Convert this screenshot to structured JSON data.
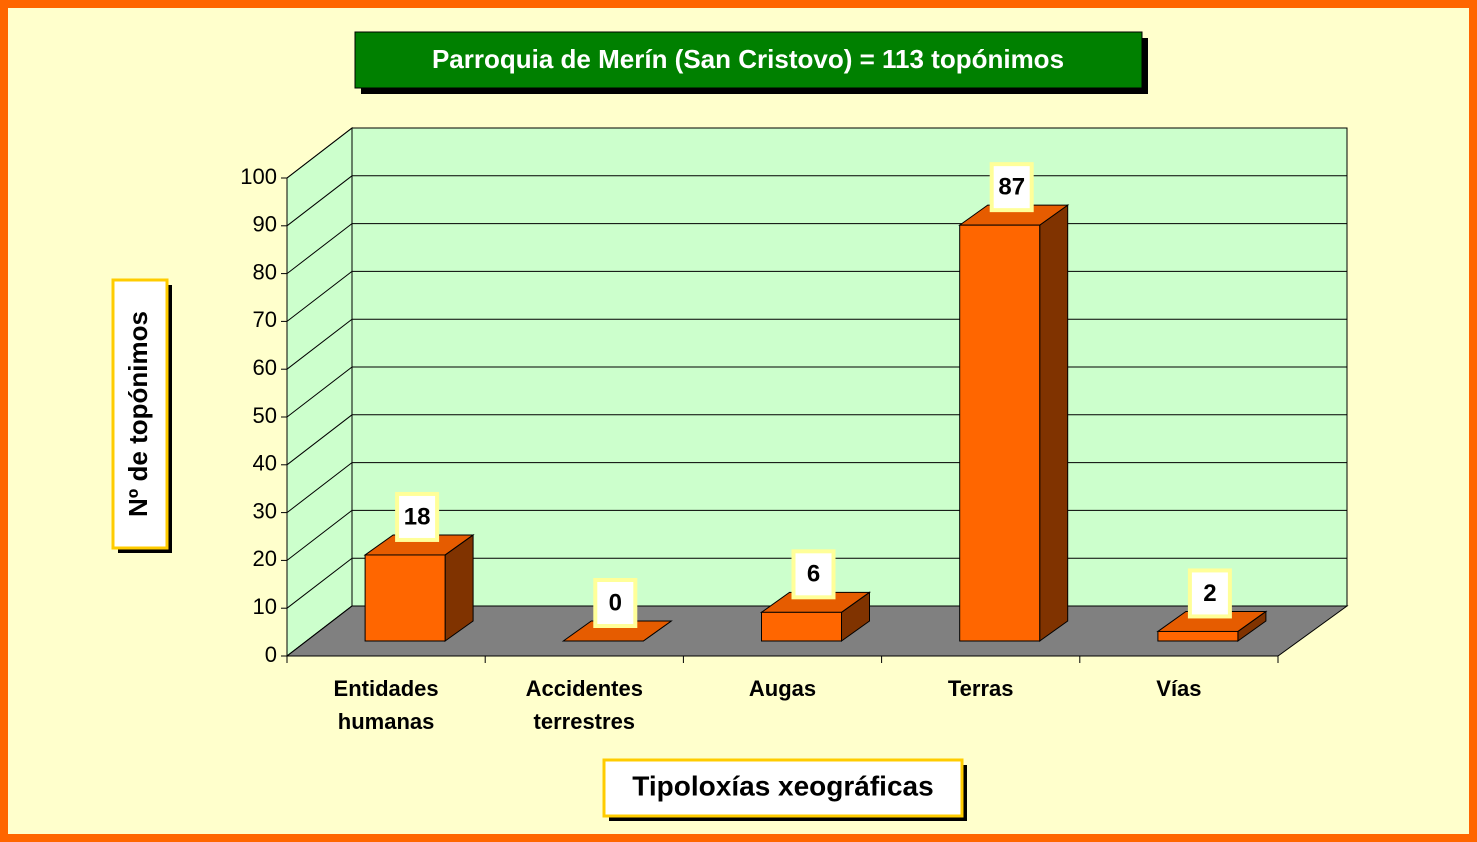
{
  "chart_data": {
    "type": "bar3d",
    "title": "Parroquia de Merín (San Cristovo) = 113 topónimos",
    "x_label": "Tipoloxías xeográficas",
    "y_label": "Nº de topónimos",
    "categories": [
      "Entidades humanas",
      "Accidentes terrestres",
      "Augas",
      "Terras",
      "Vías"
    ],
    "values": [
      18,
      0,
      6,
      87,
      2
    ],
    "color": "#ff6600",
    "ylim": [
      0,
      100
    ],
    "yticks": [
      0,
      10,
      20,
      30,
      40,
      50,
      60,
      70,
      80,
      90,
      100
    ],
    "grid": true
  }
}
